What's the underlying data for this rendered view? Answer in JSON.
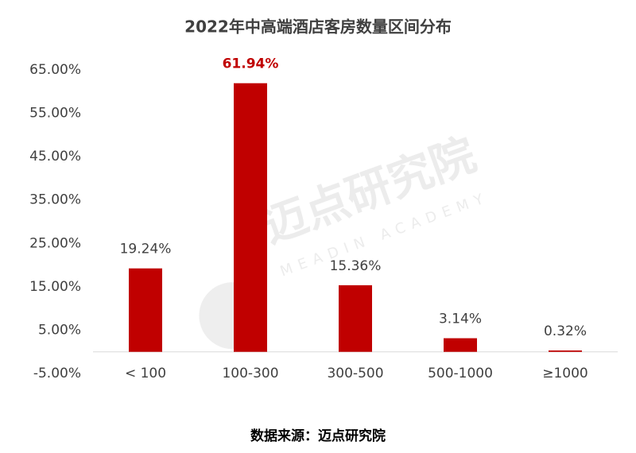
{
  "chart_data": {
    "type": "bar",
    "title": "2022年中高端酒店客房数量区间分布",
    "categories": [
      "< 100",
      "100-300",
      "300-500",
      "500-1000",
      "≥1000"
    ],
    "values": [
      19.24,
      61.94,
      15.36,
      3.14,
      0.32
    ],
    "value_labels": [
      "19.24%",
      "61.94%",
      "15.36%",
      "3.14%",
      "0.32%"
    ],
    "value_label_colors": [
      "#404040",
      "#c00000",
      "#404040",
      "#404040",
      "#404040"
    ],
    "color": "#c00000",
    "ylim": [
      -5,
      65
    ],
    "yticks": [
      {
        "value": -5,
        "label": "-5.00%"
      },
      {
        "value": 5,
        "label": "5.00%"
      },
      {
        "value": 15,
        "label": "15.00%"
      },
      {
        "value": 25,
        "label": "25.00%"
      },
      {
        "value": 35,
        "label": "35.00%"
      },
      {
        "value": 45,
        "label": "45.00%"
      },
      {
        "value": 55,
        "label": "55.00%"
      },
      {
        "value": 65,
        "label": "65.00%"
      }
    ],
    "grid": false,
    "source": "数据来源：迈点研究院",
    "watermark": {
      "text": "迈点研究院",
      "subtext": "MEADIN ACADEMY"
    }
  }
}
